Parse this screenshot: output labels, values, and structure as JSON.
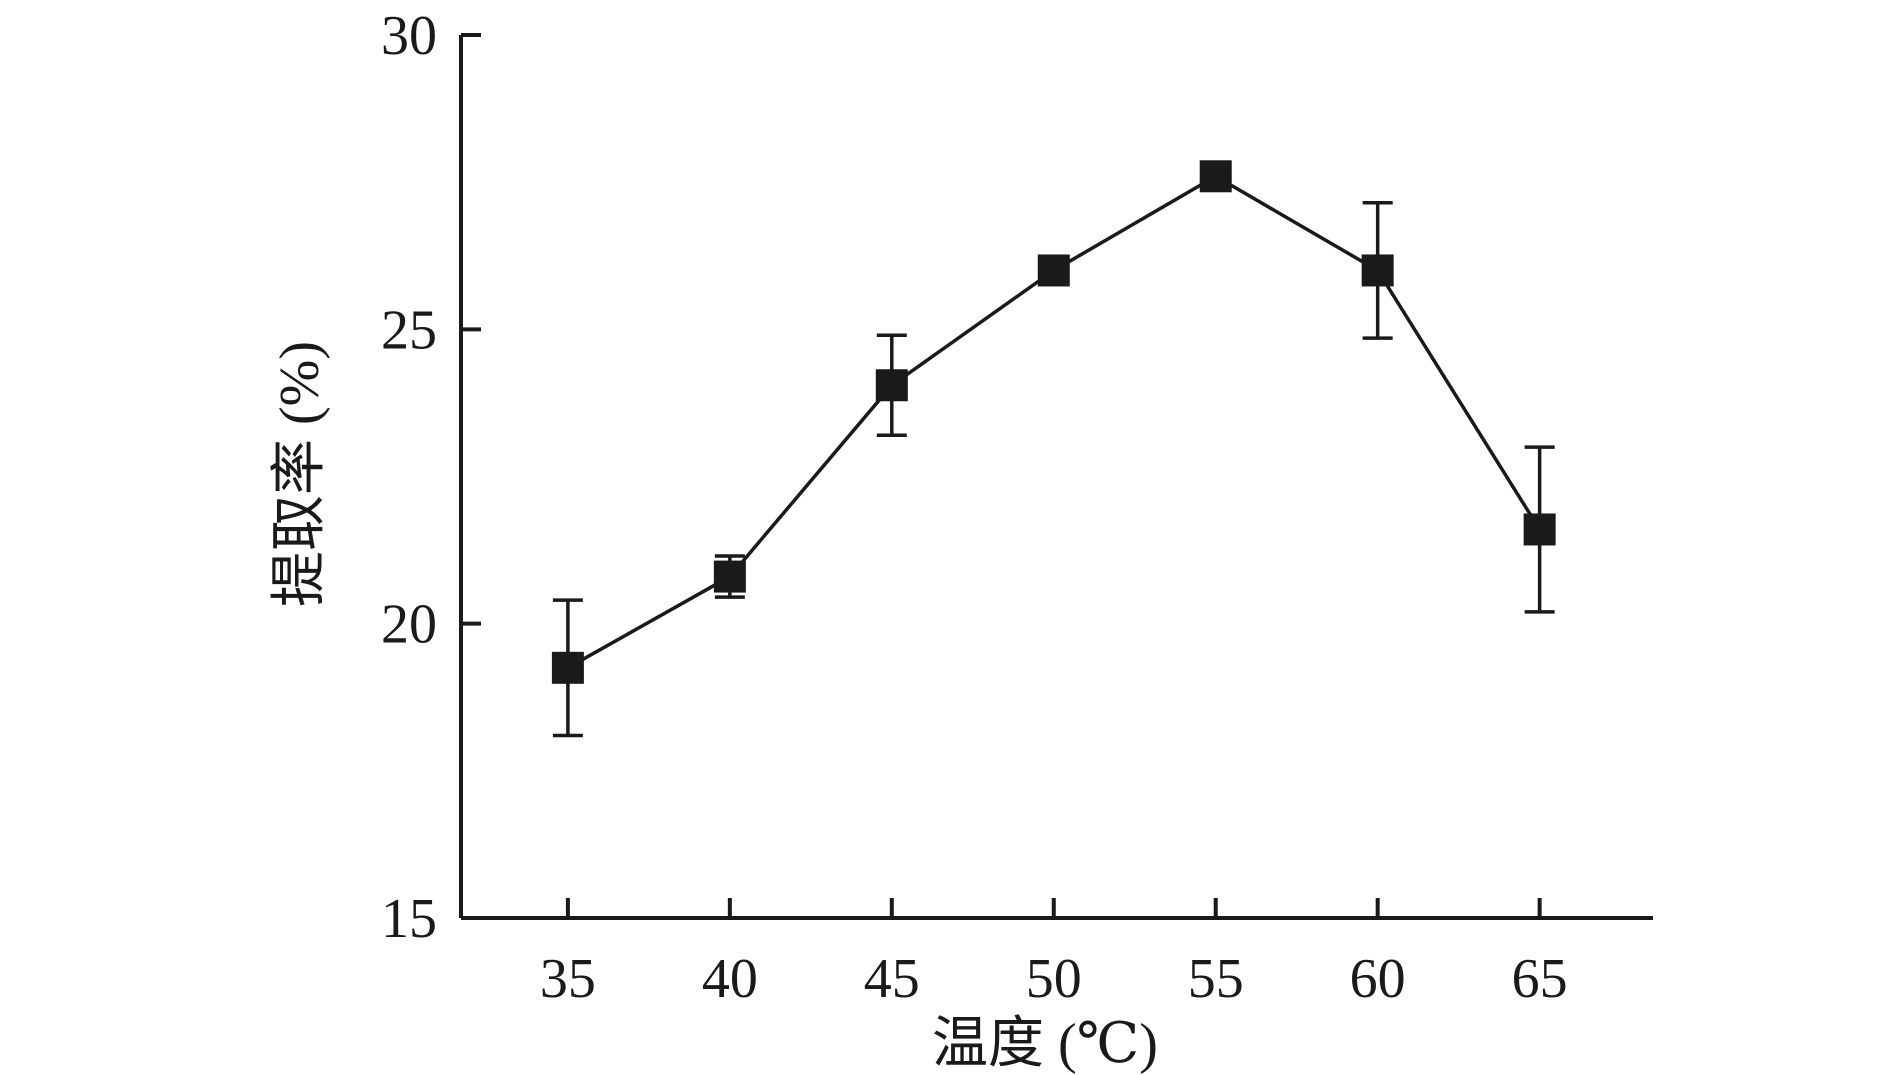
{
  "chart_data": {
    "type": "line",
    "title": "",
    "xlabel": "温度 (℃)",
    "ylabel": "提取率 (%)",
    "x": [
      35,
      40,
      45,
      50,
      55,
      60,
      65
    ],
    "x_ticks": [
      "35",
      "40",
      "45",
      "50",
      "55",
      "60",
      "65"
    ],
    "y_ticks": [
      "15",
      "20",
      "25",
      "30"
    ],
    "xlim": [
      31.7,
      68.5
    ],
    "ylim": [
      15,
      30
    ],
    "grid": false,
    "legend": "none",
    "marker": "square",
    "color": "#1a1a1a",
    "series": [
      {
        "values": [
          19.25,
          20.8,
          24.05,
          26.0,
          27.6,
          26.0,
          21.6
        ],
        "error": [
          1.15,
          0.35,
          0.85,
          0.0,
          0.0,
          1.15,
          1.4
        ]
      }
    ]
  }
}
